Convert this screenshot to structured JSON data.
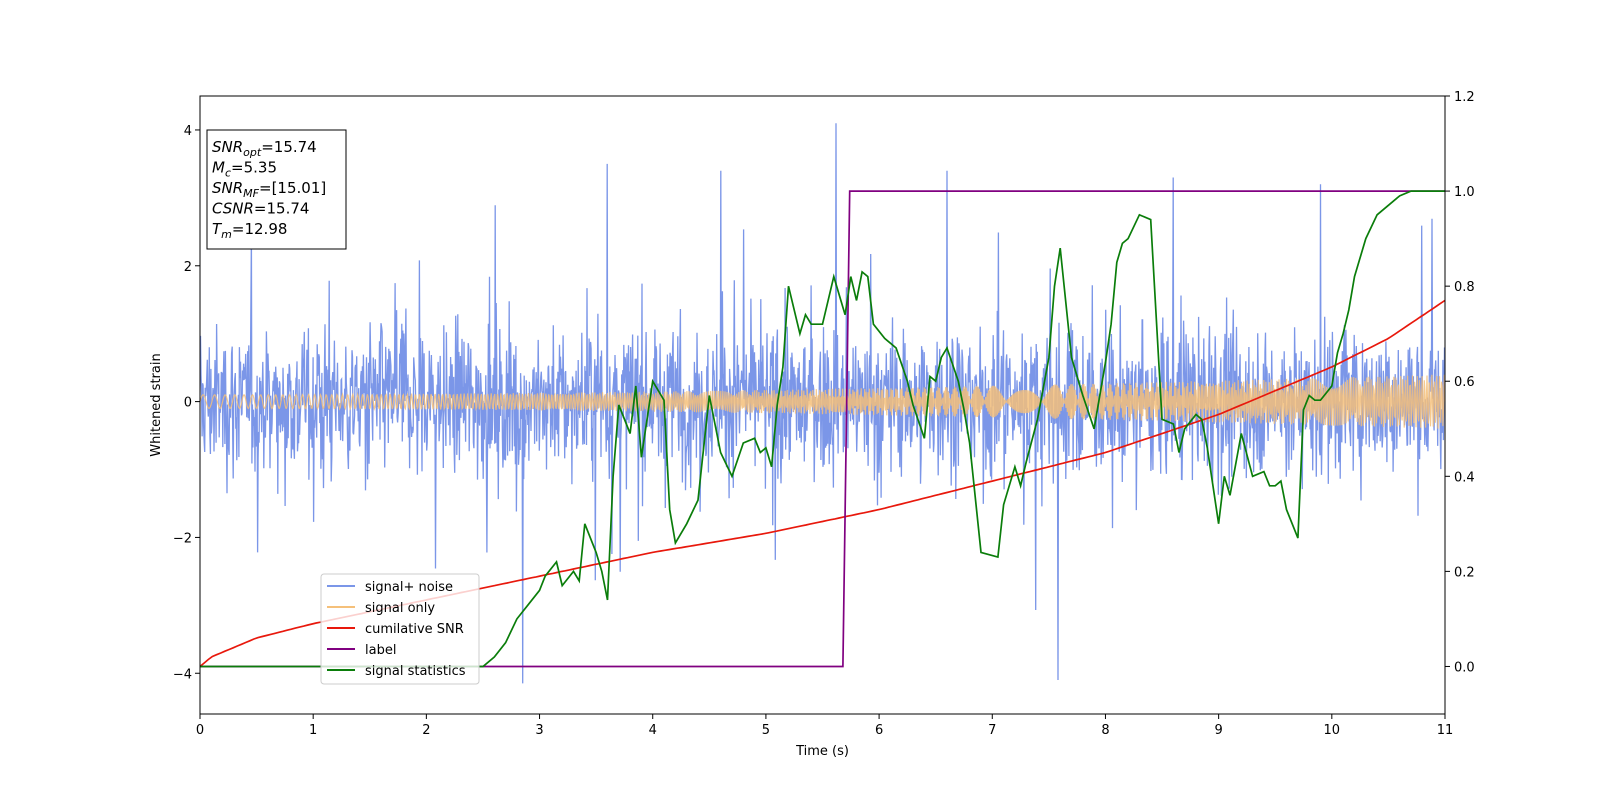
{
  "chart_data": {
    "type": "line",
    "title": "",
    "xlabel": "Time (s)",
    "ylabel": "Whitened strain",
    "xlim": [
      0,
      11
    ],
    "ylim": [
      -4.6,
      4.5
    ],
    "y2lim": [
      -0.1,
      1.2
    ],
    "x_ticks": [
      0,
      1,
      2,
      3,
      4,
      5,
      6,
      7,
      8,
      9,
      10,
      11
    ],
    "y_ticks": [
      -4,
      -2,
      0,
      2,
      4
    ],
    "y2_ticks": [
      0.0,
      0.2,
      0.4,
      0.6,
      0.8,
      1.0,
      1.2
    ],
    "x_tick_labels": [
      "0",
      "1",
      "2",
      "3",
      "4",
      "5",
      "6",
      "7",
      "8",
      "9",
      "10",
      "11"
    ],
    "y_tick_labels": [
      "−4",
      "−2",
      "0",
      "2",
      "4"
    ],
    "y2_tick_labels": [
      "0.0",
      "0.2",
      "0.4",
      "0.6",
      "0.8",
      "1.0",
      "1.2"
    ],
    "legend_position": "lower-left",
    "series": [
      {
        "name": "signal+ noise",
        "axis": "left",
        "color": "#7b96e8",
        "description": "whitened noise envelope approx ±1.9 with spikes up to ±4.1",
        "approx_amplitude": 1.9,
        "peaks": [
          [
            5.62,
            4.1
          ],
          [
            2.85,
            -4.15
          ],
          [
            7.58,
            -4.1
          ],
          [
            3.6,
            3.5
          ],
          [
            6.6,
            3.4
          ],
          [
            8.6,
            3.3
          ],
          [
            4.6,
            3.4
          ],
          [
            9.9,
            3.2
          ]
        ]
      },
      {
        "name": "signal only",
        "axis": "left",
        "color": "#f5c07a",
        "description": "chirp with amplitude growing from ~0.1 to ~0.4",
        "amplitude_start": 0.1,
        "amplitude_end": 0.4
      },
      {
        "name": "cumilative SNR",
        "axis": "right",
        "color": "#e8180c",
        "x": [
          0,
          0.1,
          0.5,
          1,
          2,
          3,
          4,
          5,
          6,
          7,
          8,
          9,
          10,
          10.5,
          11
        ],
        "y": [
          0.0,
          0.02,
          0.06,
          0.09,
          0.14,
          0.19,
          0.24,
          0.28,
          0.33,
          0.39,
          0.45,
          0.53,
          0.63,
          0.69,
          0.77
        ]
      },
      {
        "name": "label",
        "axis": "right",
        "color": "#800080",
        "x": [
          0,
          5.68,
          5.74,
          11
        ],
        "y": [
          0,
          0,
          1,
          1
        ]
      },
      {
        "name": "signal statistics",
        "axis": "right",
        "color": "#0a7d0a",
        "x": [
          0,
          0.5,
          1,
          1.5,
          2,
          2.3,
          2.5,
          2.6,
          2.7,
          2.8,
          2.9,
          3.0,
          3.05,
          3.15,
          3.2,
          3.3,
          3.35,
          3.4,
          3.5,
          3.55,
          3.6,
          3.65,
          3.7,
          3.8,
          3.85,
          3.9,
          4.0,
          4.1,
          4.15,
          4.2,
          4.3,
          4.4,
          4.5,
          4.6,
          4.7,
          4.8,
          4.9,
          4.95,
          5.0,
          5.05,
          5.1,
          5.15,
          5.2,
          5.3,
          5.35,
          5.4,
          5.5,
          5.6,
          5.7,
          5.75,
          5.8,
          5.85,
          5.9,
          5.95,
          6.05,
          6.15,
          6.25,
          6.3,
          6.4,
          6.45,
          6.5,
          6.55,
          6.6,
          6.7,
          6.75,
          6.8,
          6.9,
          7.05,
          7.1,
          7.2,
          7.25,
          7.3,
          7.4,
          7.5,
          7.55,
          7.6,
          7.7,
          7.8,
          7.9,
          8.0,
          8.05,
          8.1,
          8.15,
          8.2,
          8.3,
          8.4,
          8.5,
          8.6,
          8.65,
          8.7,
          8.8,
          8.85,
          8.9,
          9.0,
          9.05,
          9.1,
          9.2,
          9.3,
          9.4,
          9.45,
          9.5,
          9.55,
          9.6,
          9.7,
          9.75,
          9.8,
          9.85,
          9.9,
          10.0,
          10.05,
          10.1,
          10.15,
          10.2,
          10.3,
          10.4,
          10.5,
          10.6,
          10.7,
          10.8,
          11.0
        ],
        "y": [
          0.0,
          0.0,
          0.0,
          0.0,
          0.0,
          0.0,
          0.0,
          0.02,
          0.05,
          0.1,
          0.13,
          0.16,
          0.19,
          0.22,
          0.17,
          0.2,
          0.18,
          0.3,
          0.24,
          0.2,
          0.14,
          0.4,
          0.55,
          0.49,
          0.59,
          0.44,
          0.6,
          0.56,
          0.33,
          0.26,
          0.3,
          0.35,
          0.57,
          0.45,
          0.4,
          0.47,
          0.48,
          0.45,
          0.46,
          0.42,
          0.55,
          0.63,
          0.8,
          0.7,
          0.74,
          0.72,
          0.72,
          0.82,
          0.74,
          0.82,
          0.77,
          0.83,
          0.82,
          0.72,
          0.69,
          0.67,
          0.6,
          0.55,
          0.48,
          0.61,
          0.6,
          0.65,
          0.67,
          0.6,
          0.54,
          0.47,
          0.24,
          0.23,
          0.34,
          0.42,
          0.38,
          0.43,
          0.52,
          0.65,
          0.8,
          0.88,
          0.65,
          0.57,
          0.5,
          0.64,
          0.72,
          0.85,
          0.89,
          0.9,
          0.95,
          0.94,
          0.52,
          0.51,
          0.45,
          0.5,
          0.53,
          0.52,
          0.46,
          0.3,
          0.4,
          0.36,
          0.49,
          0.4,
          0.41,
          0.38,
          0.38,
          0.39,
          0.33,
          0.27,
          0.54,
          0.57,
          0.56,
          0.56,
          0.59,
          0.66,
          0.7,
          0.75,
          0.82,
          0.9,
          0.95,
          0.97,
          0.99,
          1.0,
          1.0,
          1.0
        ]
      }
    ],
    "info_box": {
      "lines": [
        {
          "main": "SNR",
          "sub": "opt",
          "rest": "=15.74"
        },
        {
          "main": "M",
          "sub": "c",
          "rest": "=5.35"
        },
        {
          "main": "SNR",
          "sub": "MF",
          "rest": "=[15.01]"
        },
        {
          "main": "CSNR",
          "sub": "",
          "rest": "=15.74"
        },
        {
          "main": "T",
          "sub": "m",
          "rest": "=12.98"
        }
      ]
    }
  }
}
